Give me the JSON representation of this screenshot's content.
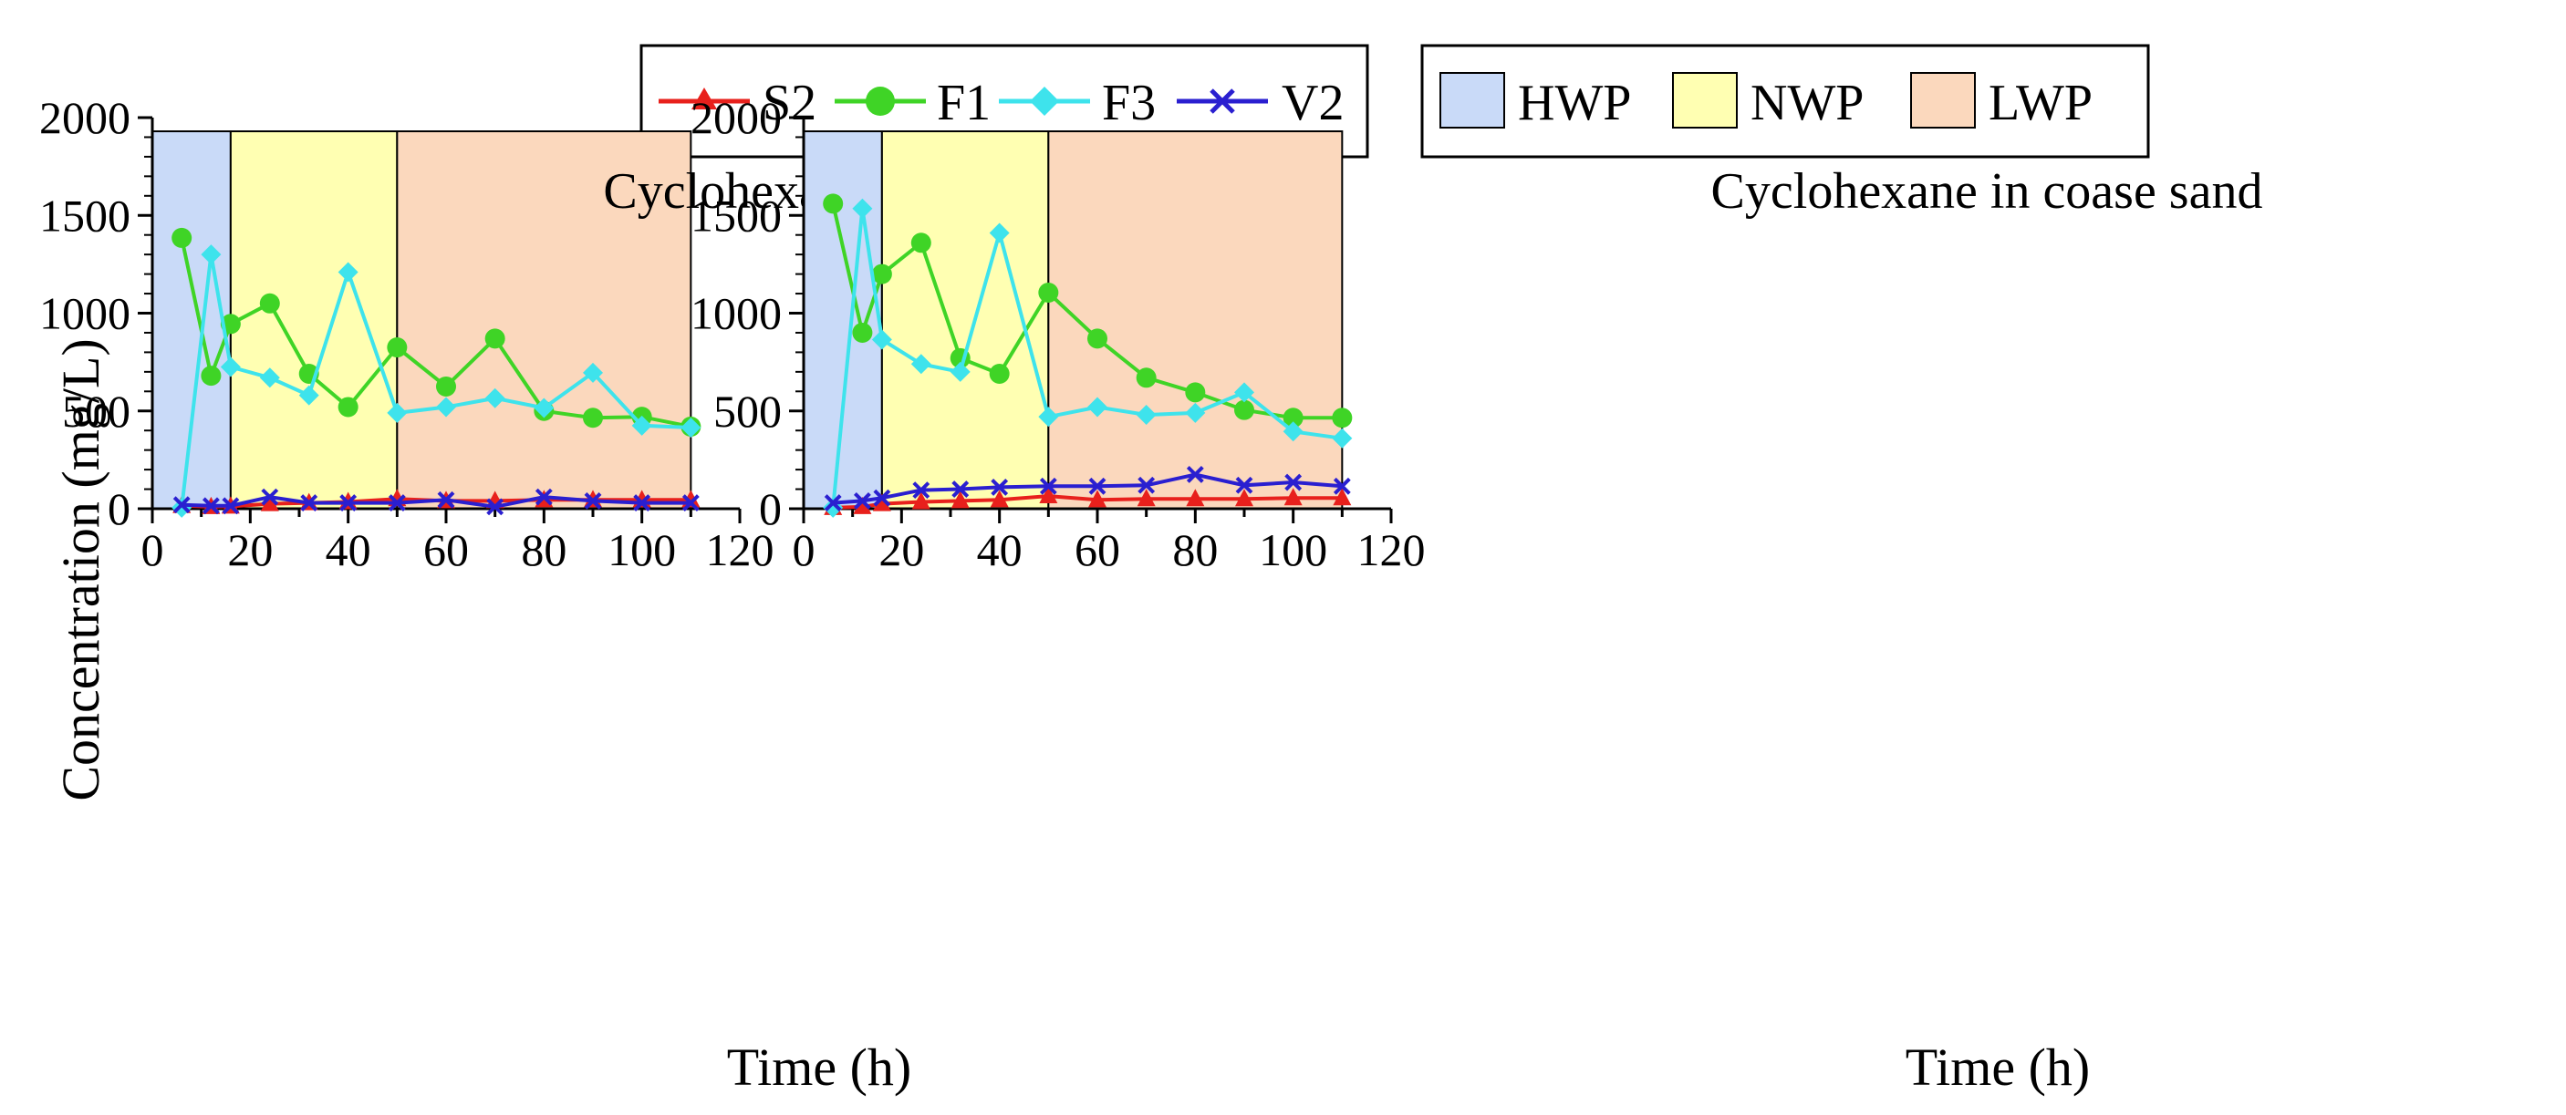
{
  "legend": {
    "series": [
      {
        "name": "S2",
        "color": "#e8201c",
        "marker": "triangle"
      },
      {
        "name": "F1",
        "color": "#3fd426",
        "marker": "circle"
      },
      {
        "name": "F3",
        "color": "#3ee3ec",
        "marker": "diamond"
      },
      {
        "name": "V2",
        "color": "#2a1fd0",
        "marker": "x"
      }
    ],
    "phases": [
      {
        "name": "HWP",
        "color": "#c9daf8"
      },
      {
        "name": "NWP",
        "color": "#ffffb2"
      },
      {
        "name": "LWP",
        "color": "#fbd8bd"
      }
    ]
  },
  "chart_data": [
    {
      "type": "line",
      "title": "Cyclohexane in clay",
      "xlabel": "Time (h)",
      "ylabel": "Concentration (mg/L)",
      "xlim": [
        0,
        120
      ],
      "ylim": [
        0,
        2000
      ],
      "xticks": [
        0,
        20,
        40,
        60,
        80,
        100,
        120
      ],
      "yticks": [
        0,
        500,
        1000,
        1500,
        2000
      ],
      "phase_bands": [
        {
          "name": "HWP",
          "x0": 0,
          "x1": 16
        },
        {
          "name": "NWP",
          "x0": 16,
          "x1": 50
        },
        {
          "name": "LWP",
          "x0": 50,
          "x1": 110
        }
      ],
      "band_top": 1930,
      "x": [
        6,
        12,
        16,
        24,
        32,
        40,
        50,
        60,
        70,
        80,
        90,
        100,
        110
      ],
      "series": [
        {
          "name": "S2",
          "values": [
            15,
            10,
            12,
            25,
            30,
            35,
            50,
            40,
            40,
            45,
            45,
            45,
            45
          ]
        },
        {
          "name": "F1",
          "values": [
            1385,
            680,
            945,
            1050,
            690,
            520,
            825,
            625,
            870,
            500,
            465,
            470,
            420
          ]
        },
        {
          "name": "F3",
          "values": [
            5,
            1300,
            725,
            670,
            580,
            1210,
            490,
            520,
            565,
            515,
            695,
            425,
            415
          ]
        },
        {
          "name": "V2",
          "values": [
            20,
            15,
            15,
            60,
            30,
            30,
            30,
            45,
            10,
            60,
            40,
            30,
            30
          ]
        }
      ]
    },
    {
      "type": "line",
      "title": "Cyclohexane in coase sand",
      "xlabel": "Time (h)",
      "ylabel": "",
      "xlim": [
        0,
        120
      ],
      "ylim": [
        0,
        2000
      ],
      "xticks": [
        0,
        20,
        40,
        60,
        80,
        100,
        120
      ],
      "yticks": [
        0,
        500,
        1000,
        1500,
        2000
      ],
      "phase_bands": [
        {
          "name": "HWP",
          "x0": 0,
          "x1": 16
        },
        {
          "name": "NWP",
          "x0": 16,
          "x1": 50
        },
        {
          "name": "LWP",
          "x0": 50,
          "x1": 110
        }
      ],
      "band_top": 1930,
      "x": [
        6,
        12,
        16,
        24,
        32,
        40,
        50,
        60,
        70,
        80,
        90,
        100,
        110
      ],
      "series": [
        {
          "name": "S2",
          "values": [
            5,
            10,
            25,
            35,
            40,
            45,
            65,
            45,
            50,
            50,
            50,
            55,
            55
          ]
        },
        {
          "name": "F1",
          "values": [
            1560,
            900,
            1200,
            1360,
            770,
            690,
            1105,
            870,
            670,
            595,
            505,
            465,
            465
          ]
        },
        {
          "name": "F3",
          "values": [
            5,
            1535,
            865,
            740,
            700,
            1410,
            470,
            520,
            480,
            490,
            595,
            395,
            360
          ]
        },
        {
          "name": "V2",
          "values": [
            30,
            40,
            55,
            95,
            100,
            110,
            115,
            115,
            120,
            175,
            120,
            135,
            115
          ]
        }
      ]
    }
  ]
}
